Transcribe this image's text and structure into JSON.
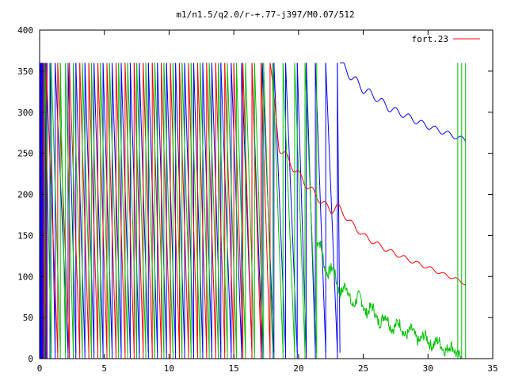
{
  "chart_data": {
    "type": "line",
    "title": "m1/n1.5/q2.0/r-+.77-j397/M0.07/512",
    "xlabel": "",
    "ylabel": "",
    "xlim": [
      0,
      35
    ],
    "ylim": [
      0,
      400
    ],
    "xticks": [
      0,
      5,
      10,
      15,
      20,
      25,
      30,
      35
    ],
    "yticks": [
      0,
      50,
      100,
      150,
      200,
      250,
      300,
      350,
      400
    ],
    "grid": false,
    "legend": {
      "position": "top-right",
      "label": "fort.23",
      "color": "#ff0000"
    },
    "series": [
      {
        "color": "#0000ff",
        "wrap_range": [
          0,
          360
        ],
        "dense_region": [
          0.0,
          0.6
        ],
        "wrap_x": [
          0.8,
          1.2,
          2.2,
          2.8,
          3.5,
          4.2,
          4.9,
          5.6,
          6.3,
          7.0,
          7.7,
          8.4,
          9.1,
          9.8,
          10.5,
          11.2,
          11.9,
          12.6,
          13.3,
          14.0,
          14.8,
          15.6,
          16.4,
          17.2,
          18.1,
          19.0,
          19.9,
          20.6,
          21.3,
          22.1,
          23.0
        ],
        "tail_x": [
          23.2,
          24.0,
          25.0,
          26.0,
          27.0,
          28.0,
          29.0,
          30.0,
          31.0,
          32.0,
          32.9
        ],
        "tail_y": [
          360,
          345,
          328,
          318,
          305,
          298,
          290,
          283,
          277,
          271,
          266
        ]
      },
      {
        "color": "#ff0000",
        "wrap_range": [
          0,
          360
        ],
        "wrap_x": [
          0.3,
          0.5,
          1.4,
          2.3,
          3.1,
          3.8,
          4.5,
          5.2,
          5.9,
          6.6,
          7.3,
          8.0,
          8.7,
          9.4,
          10.1,
          10.8,
          11.5,
          12.2,
          12.9,
          13.6,
          14.3,
          15.0,
          15.7,
          16.4,
          17.1,
          17.8
        ],
        "tail_x": [
          17.8,
          18.5,
          19.5,
          20.5,
          21.5,
          22.5,
          23.0,
          24.0,
          25.0,
          26.0,
          27.0,
          28.0,
          29.0,
          30.0,
          31.0,
          32.0,
          32.9
        ],
        "tail_y": [
          360,
          258,
          235,
          214,
          196,
          180,
          186,
          166,
          150,
          140,
          131,
          124,
          117,
          111,
          104,
          98,
          91
        ]
      },
      {
        "color": "#00c000",
        "wrap_range": [
          0,
          360
        ],
        "wrap_x": [
          0.4,
          0.9,
          1.6,
          2.0,
          2.6,
          3.3,
          4.0,
          4.7,
          5.4,
          6.1,
          6.8,
          7.5,
          8.2,
          8.9,
          9.6,
          10.3,
          11.0,
          11.7,
          12.4,
          13.1,
          13.8,
          14.5,
          15.2,
          15.9,
          16.6,
          17.3,
          18.0,
          18.8,
          19.7,
          20.5,
          21.4
        ],
        "tail_x": [
          21.4,
          22.0,
          23.0,
          24.0,
          25.0,
          26.0,
          27.0,
          28.0,
          29.0,
          30.0,
          31.0,
          32.0,
          32.6
        ],
        "tail_y": [
          140,
          118,
          92,
          74,
          66,
          52,
          44,
          36,
          28,
          22,
          16,
          10,
          6
        ],
        "end_spikes_x": [
          32.3,
          32.6,
          32.9
        ]
      }
    ]
  }
}
